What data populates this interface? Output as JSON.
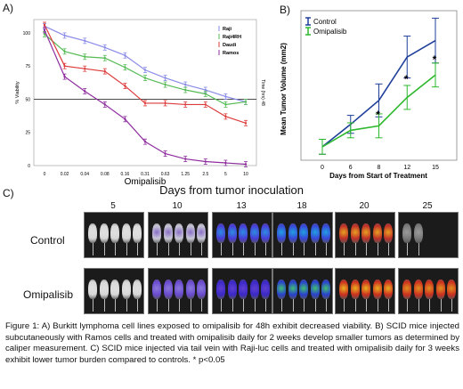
{
  "panels": {
    "a": "A)",
    "b": "B)",
    "c": "C)"
  },
  "chart_data": [
    {
      "type": "line",
      "title": "",
      "xlabel": "Omipalisib",
      "ylabel": "% Viability",
      "right_ylabel": "Time (hrs) 48",
      "categories": [
        "0",
        "0.02",
        "0.04",
        "0.08",
        "0.16",
        "0.31",
        "0.63",
        "1.25",
        "2.5",
        "5",
        "10"
      ],
      "ylim": [
        0,
        110
      ],
      "yticks": [
        0,
        25,
        50,
        75,
        100
      ],
      "reference_line": 50,
      "legend_position": "top-right",
      "series": [
        {
          "name": "Raji",
          "color": "#8a8ae8",
          "values": [
            105,
            98,
            94,
            89,
            83,
            72,
            66,
            61,
            57,
            52,
            48
          ]
        },
        {
          "name": "Raji4RH",
          "color": "#55bb55",
          "values": [
            99,
            86,
            82,
            81,
            74,
            66,
            61,
            57,
            54,
            46,
            48
          ]
        },
        {
          "name": "Daudi",
          "color": "#dd3b3b",
          "values": [
            106,
            75,
            73,
            71,
            60,
            47,
            47,
            46,
            46,
            37,
            32
          ]
        },
        {
          "name": "Ramos",
          "color": "#8e2d9e",
          "values": [
            102,
            67,
            56,
            46,
            35,
            18,
            9,
            5,
            3,
            2,
            1
          ]
        }
      ]
    },
    {
      "type": "line",
      "title": "",
      "xlabel": "Days from Start of Treatment",
      "ylabel": "Mean Tumor Volume (mm2)",
      "categories": [
        "0",
        "6",
        "8",
        "12",
        "15"
      ],
      "ylim": [
        0,
        500
      ],
      "legend_position": "top-left",
      "series": [
        {
          "name": "Control",
          "color": "#1f3f9a",
          "values": [
            45,
            120,
            200,
            345,
            400
          ],
          "errors": [
            25,
            30,
            55,
            70,
            75
          ]
        },
        {
          "name": "Omipalisib",
          "color": "#2db82d",
          "values": [
            45,
            100,
            115,
            210,
            285
          ],
          "errors": [
            25,
            25,
            40,
            40,
            40
          ]
        }
      ],
      "annotations": [
        {
          "x": "8",
          "text": "*"
        },
        {
          "x": "12",
          "text": "*"
        },
        {
          "x": "15",
          "text": "*"
        }
      ]
    }
  ],
  "imaging": {
    "title": "Days from tumor inoculation",
    "days": [
      "5",
      "10",
      "13",
      "18",
      "20",
      "25"
    ],
    "rows": [
      "Control",
      "Omipalisib"
    ]
  },
  "caption": "Figure 1: A) Burkitt lymphoma cell lines exposed to omipalisib for 48h exhibit decreased viability. B) SCID mice injected subcutaneously with Ramos cells and treated with omipalisib daily for 2 weeks develop smaller tumors as determined by caliper measurement. C) SCID mice injected via tail vein with Raji-luc cells and treated with omipalisib daily for 3 weeks exhibit lower tumor burden compared to controls. * p<0.05"
}
